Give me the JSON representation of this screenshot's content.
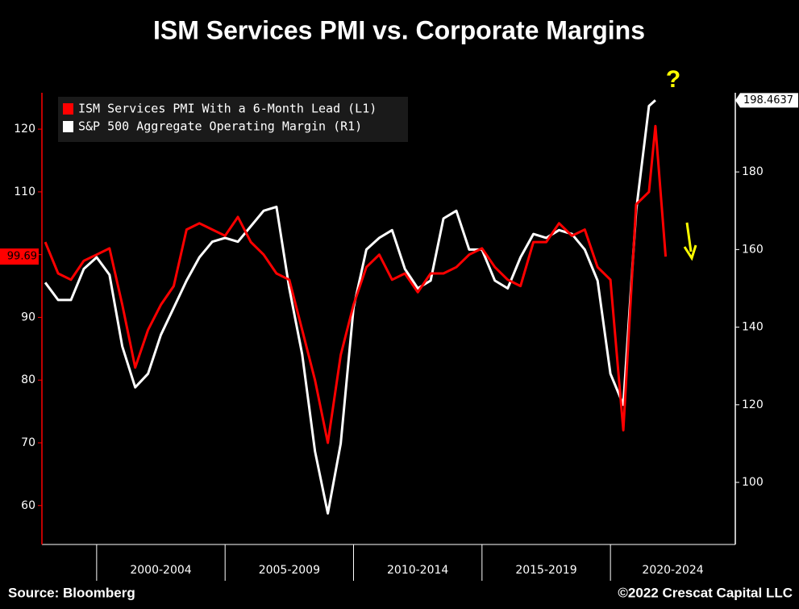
{
  "chart_data": {
    "type": "line",
    "title": "ISM Services PMI vs. Corporate Margins",
    "source": "Source: Bloomberg",
    "copyright": "©2022 Crescat Capital LLC",
    "annotation": "?",
    "xlim": [
      1997.87,
      2024.86
    ],
    "xticks": [
      2000,
      2005,
      2010,
      2015,
      2020
    ],
    "categories": [
      "2000-2004",
      "2005-2009",
      "2010-2014",
      "2015-2019",
      "2020-2024"
    ],
    "ylim": [
      53.8,
      125.8
    ],
    "yticks": [
      60,
      70,
      80,
      90,
      100,
      110,
      120
    ],
    "y2lim": [
      84,
      200.4
    ],
    "y2ticks": [
      100,
      120,
      140,
      160,
      180
    ],
    "x": [
      1998.0,
      1998.5,
      1999.0,
      1999.5,
      2000.0,
      2000.5,
      2001.0,
      2001.5,
      2002.0,
      2002.5,
      2003.0,
      2003.5,
      2004.0,
      2004.5,
      2005.0,
      2005.5,
      2006.0,
      2006.5,
      2007.0,
      2007.5,
      2008.0,
      2008.5,
      2009.0,
      2009.5,
      2010.0,
      2010.5,
      2011.0,
      2011.5,
      2012.0,
      2012.5,
      2013.0,
      2013.5,
      2014.0,
      2014.5,
      2015.0,
      2015.5,
      2016.0,
      2016.5,
      2017.0,
      2017.5,
      2018.0,
      2018.5,
      2019.0,
      2019.5,
      2020.0,
      2020.5,
      2021.0,
      2021.5,
      2021.75,
      2022.15
    ],
    "series": [
      {
        "name": "ISM Services PMI With a 6-Month Lead (L1)",
        "color": "#ff0000",
        "axis": "y",
        "values": [
          102,
          97,
          96,
          99,
          100,
          101,
          92,
          82,
          88,
          92,
          95,
          104,
          105,
          104,
          103,
          106,
          102,
          100,
          97,
          96,
          88,
          80,
          70,
          84,
          92,
          98,
          100,
          96,
          97,
          94,
          97,
          97,
          98,
          100,
          101,
          98,
          96,
          95,
          102,
          102,
          105,
          103,
          104,
          98,
          96,
          72,
          108,
          110,
          120.5,
          99.69
        ]
      },
      {
        "name": "S&P 500 Aggregate Operating Margin  (R1)",
        "color": "#ffffff",
        "axis": "y2",
        "values": [
          151.5,
          147,
          147,
          155,
          158,
          153.5,
          135,
          124.5,
          128,
          138,
          145,
          152,
          158,
          162,
          163,
          162,
          166,
          170,
          171,
          150,
          133,
          108,
          92,
          110,
          145,
          160,
          163,
          165,
          155,
          150,
          152,
          168,
          170,
          160,
          160,
          152,
          150,
          158,
          164,
          163,
          165,
          164,
          160,
          152,
          128,
          120,
          170,
          197,
          198.4637,
          null
        ]
      }
    ]
  }
}
